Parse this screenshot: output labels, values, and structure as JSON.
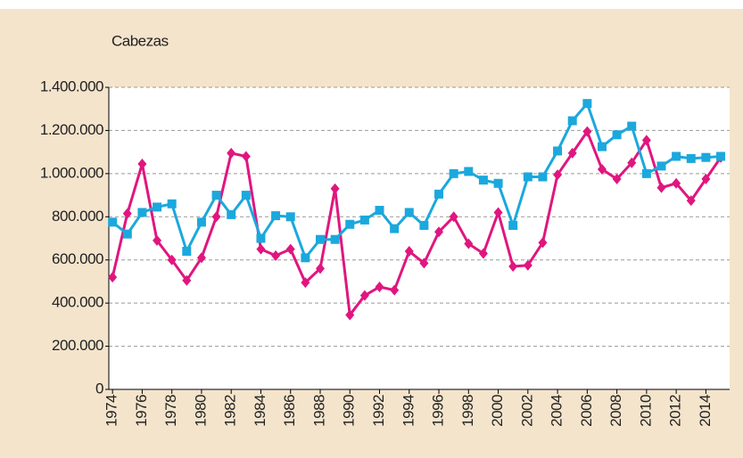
{
  "chart_data": {
    "type": "line",
    "ylabel": "Cabezas",
    "x": [
      1974,
      1975,
      1976,
      1977,
      1978,
      1979,
      1980,
      1981,
      1982,
      1983,
      1984,
      1985,
      1986,
      1987,
      1988,
      1989,
      1990,
      1991,
      1992,
      1993,
      1994,
      1995,
      1996,
      1997,
      1998,
      1999,
      2000,
      2001,
      2002,
      2003,
      2004,
      2005,
      2006,
      2007,
      2008,
      2009,
      2010,
      2011,
      2012,
      2013,
      2014,
      2015
    ],
    "series": [
      {
        "color": "#e0167f",
        "marker": "diamond",
        "values": [
          520000,
          815000,
          1045000,
          690000,
          600000,
          505000,
          610000,
          800000,
          1095000,
          1080000,
          650000,
          620000,
          650000,
          495000,
          560000,
          930000,
          345000,
          435000,
          475000,
          460000,
          640000,
          585000,
          730000,
          800000,
          675000,
          630000,
          820000,
          570000,
          575000,
          680000,
          995000,
          1095000,
          1195000,
          1020000,
          975000,
          1050000,
          1155000,
          935000,
          955000,
          875000,
          975000,
          1075000
        ]
      },
      {
        "color": "#1ba8dd",
        "marker": "square",
        "values": [
          775000,
          720000,
          820000,
          845000,
          860000,
          640000,
          775000,
          900000,
          810000,
          900000,
          700000,
          805000,
          800000,
          610000,
          695000,
          695000,
          765000,
          785000,
          830000,
          745000,
          820000,
          760000,
          905000,
          1000000,
          1010000,
          970000,
          955000,
          760000,
          985000,
          985000,
          1105000,
          1245000,
          1325000,
          1125000,
          1180000,
          1220000,
          1000000,
          1035000,
          1080000,
          1070000,
          1075000,
          1080000
        ]
      }
    ],
    "xlim": [
      1973.75,
      2015.6
    ],
    "xticks": [
      1974,
      1976,
      1978,
      1980,
      1982,
      1984,
      1986,
      1988,
      1990,
      1992,
      1994,
      1996,
      1998,
      2000,
      2002,
      2004,
      2006,
      2008,
      2010,
      2012,
      2014
    ],
    "ylim": [
      0,
      1400000
    ],
    "yticks": [
      0,
      {
        "value": 200000,
        "label": "200.000"
      },
      {
        "value": 400000,
        "label": "400.000"
      },
      {
        "value": 600000,
        "label": "600.000"
      },
      {
        "value": 800000,
        "label": "800.000"
      },
      {
        "value": 1000000,
        "label": "1.000.000"
      },
      {
        "value": 1200000,
        "label": "1.200.000"
      },
      {
        "value": 1400000,
        "label": "1.400.000"
      }
    ],
    "grid": true
  }
}
